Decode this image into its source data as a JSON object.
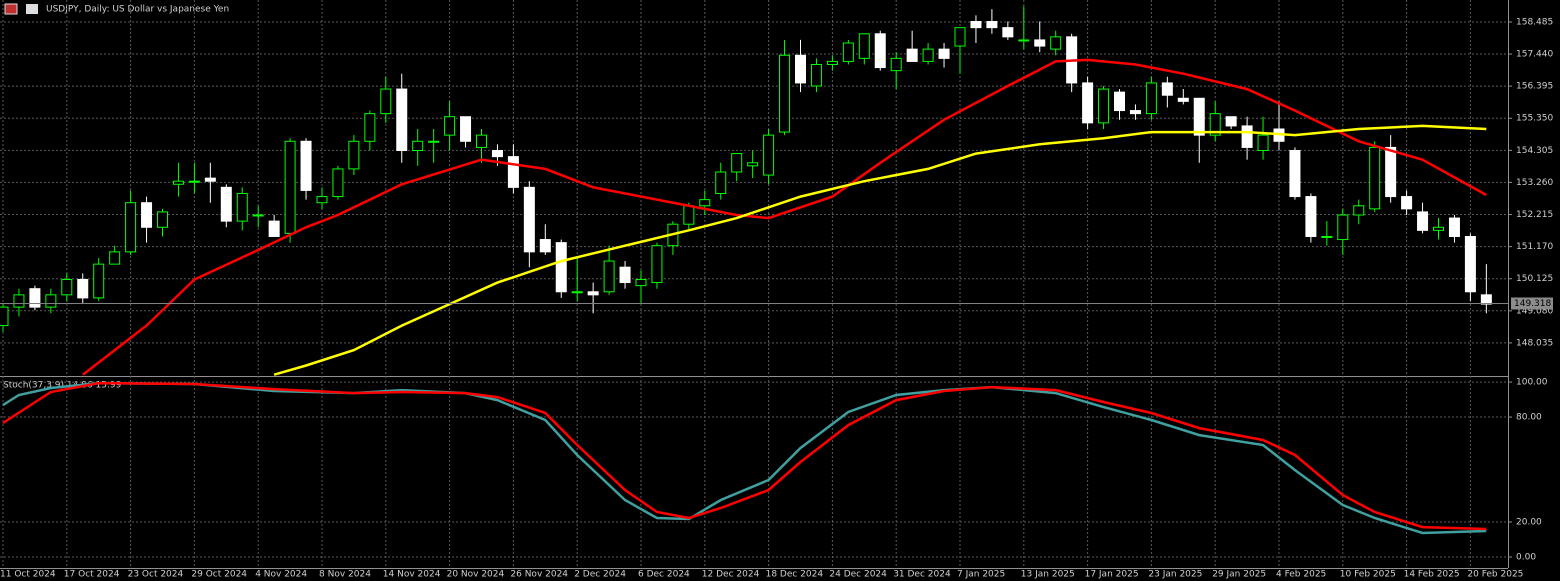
{
  "chart_data": [
    {
      "type": "candlestick",
      "title": "USDJPY, Daily:  US Dollar vs Japanese Yen",
      "categories": [
        "11 Oct 2024",
        null,
        null,
        null,
        "17 Oct 2024",
        null,
        null,
        null,
        "23 Oct 2024",
        null,
        null,
        null,
        "29 Oct 2024",
        null,
        null,
        null,
        "4 Nov 2024",
        null,
        null,
        null,
        "8 Nov 2024",
        null,
        null,
        null,
        "14 Nov 2024",
        null,
        null,
        null,
        "20 Nov 2024",
        null,
        null,
        null,
        "26 Nov 2024",
        null,
        null,
        null,
        "2 Dec 2024",
        null,
        null,
        null,
        "6 Dec 2024",
        null,
        null,
        null,
        "12 Dec 2024",
        null,
        null,
        null,
        "18 Dec 2024",
        null,
        null,
        null,
        "24 Dec 2024",
        null,
        null,
        null,
        "31 Dec 2024",
        null,
        null,
        null,
        "7 Jan 2025",
        null,
        null,
        null,
        "13 Jan 2025",
        null,
        null,
        null,
        "17 Jan 2025",
        null,
        null,
        null,
        "23 Jan 2025",
        null,
        null,
        null,
        "29 Jan 2025",
        null,
        null,
        null,
        "4 Feb 2025",
        null,
        null,
        null,
        "10 Feb 2025",
        null,
        null,
        null,
        "14 Feb 2025",
        null,
        null,
        null,
        "20 Feb 2025",
        null
      ],
      "open": [
        148.6,
        149.2,
        149.8,
        149.2,
        149.6,
        150.1,
        149.5,
        150.6,
        151.0,
        152.6,
        151.8,
        153.2,
        153.3,
        153.4,
        153.1,
        152.0,
        152.2,
        152.0,
        151.6,
        154.6,
        152.6,
        152.8,
        153.7,
        154.6,
        155.5,
        156.3,
        154.3,
        154.6,
        154.8,
        155.4,
        154.4,
        154.3,
        154.1,
        153.1,
        151.4,
        151.3,
        149.7,
        149.7,
        149.7,
        150.5,
        149.9,
        150.0,
        151.2,
        151.9,
        152.5,
        152.9,
        153.6,
        153.8,
        153.5,
        154.9,
        157.4,
        156.4,
        157.1,
        157.2,
        157.3,
        158.1,
        156.9,
        157.6,
        157.2,
        157.6,
        157.7,
        158.5,
        158.5,
        158.3,
        157.9,
        157.9,
        157.6,
        158.0,
        156.5,
        155.2,
        156.2,
        155.6,
        155.5,
        156.5,
        156.0,
        156.0,
        154.8,
        155.4,
        155.1,
        154.3,
        155.0,
        154.3,
        152.8,
        151.5,
        151.4,
        152.2,
        152.4,
        154.4,
        152.8,
        152.3,
        151.7,
        152.1,
        151.5,
        149.6
      ],
      "high": [
        149.3,
        149.8,
        149.9,
        149.8,
        150.3,
        150.3,
        150.8,
        151.2,
        153.0,
        152.8,
        152.4,
        153.9,
        153.9,
        153.9,
        153.2,
        153.1,
        152.5,
        152.2,
        154.7,
        154.7,
        153.1,
        153.8,
        154.8,
        155.6,
        156.7,
        156.8,
        155.0,
        155.0,
        155.9,
        155.4,
        155.0,
        154.5,
        154.5,
        153.3,
        151.9,
        151.4,
        150.8,
        150.0,
        151.2,
        150.7,
        150.4,
        151.3,
        152.0,
        152.6,
        153.0,
        153.9,
        154.2,
        154.3,
        155.0,
        157.9,
        157.9,
        157.3,
        157.4,
        157.9,
        158.1,
        158.2,
        157.5,
        158.2,
        157.8,
        157.8,
        158.3,
        158.7,
        158.9,
        158.5,
        159.0,
        158.5,
        158.2,
        158.1,
        156.7,
        156.4,
        156.3,
        155.8,
        156.7,
        156.7,
        156.3,
        156.0,
        155.9,
        155.4,
        155.4,
        155.4,
        155.9,
        154.4,
        152.9,
        152.0,
        152.4,
        152.7,
        154.6,
        154.8,
        153.0,
        152.6,
        152.1,
        152.2,
        151.6,
        150.6
      ],
      "low": [
        148.4,
        148.9,
        149.1,
        149.0,
        149.4,
        149.3,
        149.4,
        150.6,
        150.9,
        151.3,
        151.5,
        152.8,
        152.9,
        152.6,
        151.8,
        151.7,
        151.8,
        151.5,
        151.3,
        152.7,
        152.4,
        152.7,
        153.5,
        154.3,
        155.2,
        153.9,
        153.8,
        153.9,
        154.3,
        154.4,
        153.9,
        153.8,
        152.9,
        150.5,
        150.9,
        149.5,
        149.4,
        149.0,
        149.6,
        149.8,
        149.3,
        149.8,
        150.9,
        151.7,
        152.2,
        152.7,
        153.3,
        153.4,
        153.2,
        154.8,
        156.2,
        156.2,
        156.9,
        157.1,
        157.1,
        156.9,
        156.3,
        157.3,
        157.1,
        157.0,
        156.8,
        157.8,
        158.1,
        157.9,
        157.6,
        157.5,
        157.4,
        156.2,
        155.0,
        155.0,
        155.3,
        155.3,
        155.3,
        155.7,
        155.8,
        153.9,
        154.6,
        155.0,
        154.0,
        154.0,
        154.3,
        152.7,
        151.3,
        151.2,
        150.9,
        151.9,
        152.3,
        152.6,
        152.2,
        151.6,
        151.4,
        151.3,
        149.4,
        149.0
      ],
      "close": [
        149.2,
        149.6,
        149.2,
        149.6,
        150.1,
        149.5,
        150.6,
        151.0,
        152.6,
        151.8,
        152.3,
        153.3,
        153.3,
        153.3,
        152.0,
        152.9,
        152.2,
        151.5,
        154.6,
        153.0,
        152.8,
        153.7,
        154.6,
        155.5,
        156.3,
        154.3,
        154.6,
        154.6,
        155.4,
        154.6,
        154.8,
        154.1,
        153.1,
        151.0,
        151.0,
        149.7,
        149.7,
        149.6,
        150.7,
        150.0,
        150.1,
        151.2,
        151.9,
        152.5,
        152.7,
        153.6,
        154.2,
        153.9,
        154.8,
        157.4,
        156.5,
        157.1,
        157.2,
        157.8,
        158.1,
        157.0,
        157.3,
        157.2,
        157.6,
        157.3,
        158.3,
        158.3,
        158.3,
        158.0,
        157.9,
        157.7,
        158.0,
        156.5,
        155.2,
        156.3,
        155.6,
        155.5,
        156.5,
        156.1,
        155.9,
        154.8,
        155.5,
        155.1,
        154.4,
        154.8,
        154.6,
        152.8,
        151.5,
        151.5,
        152.2,
        152.5,
        154.4,
        152.8,
        152.4,
        151.7,
        151.8,
        151.5,
        149.7,
        149.3
      ],
      "up_color": "#00ff00",
      "down_color": "#ffffff",
      "current_price": 149.318,
      "ylim": [
        146.99,
        159.2
      ],
      "yticks": [
        158.485,
        {
          "value": 157.44,
          "label": "157.440"
        },
        156.395,
        {
          "value": 155.35,
          "label": "155.350"
        },
        154.305,
        {
          "value": 153.26,
          "label": "153.260"
        },
        152.215,
        {
          "value": 151.17,
          "label": "151.170"
        },
        150.125,
        {
          "value": 149.08,
          "label": "149.080"
        },
        148.035
      ],
      "grid": true,
      "series": [
        {
          "color": "#ff0000",
          "x": [
            5,
            9,
            12,
            16,
            19,
            21,
            25,
            30,
            34,
            37,
            41,
            46,
            48,
            52,
            55,
            59,
            63,
            66,
            68,
            71,
            74,
            78,
            81,
            85,
            89,
            93
          ],
          "values": [
            147.0,
            148.6,
            150.1,
            151.06,
            151.8,
            152.2,
            153.2,
            154.0,
            153.7,
            153.1,
            152.7,
            152.2,
            152.1,
            152.8,
            153.9,
            155.3,
            156.4,
            157.2,
            157.25,
            157.1,
            156.8,
            156.3,
            155.6,
            154.6,
            154.0,
            152.85
          ]
        },
        {
          "color": "#ffff00",
          "x": [
            17,
            19,
            22,
            25,
            28,
            31,
            35,
            39,
            43,
            46,
            50,
            54,
            58,
            61,
            65,
            69,
            72,
            78,
            81,
            85,
            89,
            93
          ],
          "values": [
            147.0,
            147.3,
            147.8,
            148.6,
            149.3,
            150.0,
            150.7,
            151.2,
            151.7,
            152.1,
            152.8,
            153.3,
            153.7,
            154.2,
            154.5,
            154.7,
            154.9,
            154.9,
            154.8,
            155.0,
            155.1,
            155.0
          ]
        }
      ]
    },
    {
      "type": "line",
      "title": "Stoch(37,3,9) 14.86 15.99",
      "ylim": [
        -6.3,
        102.9
      ],
      "yticks": [
        {
          "value": 100,
          "label": "100.00"
        },
        {
          "value": 80,
          "label": "80.00"
        },
        {
          "value": 20,
          "label": "20.00"
        },
        {
          "value": 0,
          "label": "0.00"
        }
      ],
      "series": [
        {
          "color": "#40a0a0",
          "x": [
            0,
            1,
            3,
            6,
            12,
            17,
            22,
            25,
            29,
            31,
            34,
            36,
            39,
            41,
            43,
            45,
            48,
            50,
            53,
            56,
            59,
            62,
            66,
            69,
            72,
            75,
            79,
            81,
            84,
            86,
            89,
            93
          ],
          "values": [
            86.9,
            92.6,
            96.6,
            99.4,
            98.9,
            94.9,
            93.7,
            95.4,
            93.7,
            89.7,
            78.3,
            58.3,
            32.6,
            22.3,
            21.7,
            32.6,
            44.0,
            62.3,
            82.9,
            92.6,
            95.4,
            97.1,
            93.7,
            85.7,
            78.3,
            69.7,
            64.0,
            49.7,
            29.7,
            22.3,
            13.7,
            14.86
          ]
        },
        {
          "color": "#ff0000",
          "x": [
            0,
            3,
            6,
            12,
            17,
            22,
            25,
            29,
            31,
            34,
            36,
            39,
            41,
            43,
            45,
            48,
            50,
            53,
            56,
            59,
            62,
            66,
            69,
            72,
            75,
            79,
            81,
            84,
            86,
            89,
            93
          ],
          "values": [
            76.6,
            94.3,
            99.4,
            98.9,
            96.0,
            93.7,
            94.3,
            93.7,
            91.4,
            82.3,
            64.0,
            38.3,
            25.7,
            22.3,
            28.0,
            38.3,
            54.3,
            75.4,
            89.7,
            94.9,
            97.1,
            95.4,
            88.6,
            82.3,
            73.7,
            66.9,
            58.3,
            35.4,
            25.7,
            17.1,
            15.99
          ]
        }
      ]
    }
  ]
}
